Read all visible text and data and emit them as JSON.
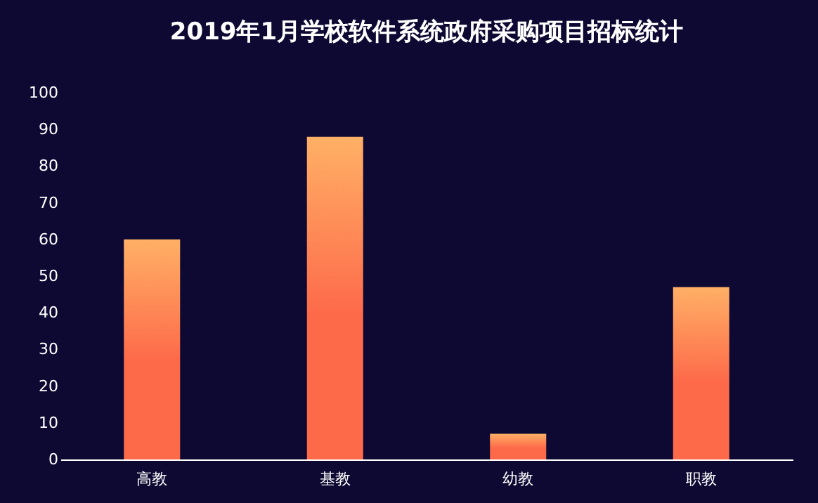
{
  "chart_data": {
    "type": "bar",
    "title": "2019年1月学校软件系统政府采购项目招标统计",
    "categories": [
      "高教",
      "基教",
      "幼教",
      "职教"
    ],
    "series": [
      {
        "color": "#fd6a4a",
        "values": [
          60,
          88,
          7,
          47
        ]
      }
    ],
    "ylim": [
      0,
      100
    ],
    "yticks": [
      0,
      10,
      20,
      30,
      40,
      50,
      60,
      70,
      80,
      90,
      100
    ],
    "grid": false
  }
}
